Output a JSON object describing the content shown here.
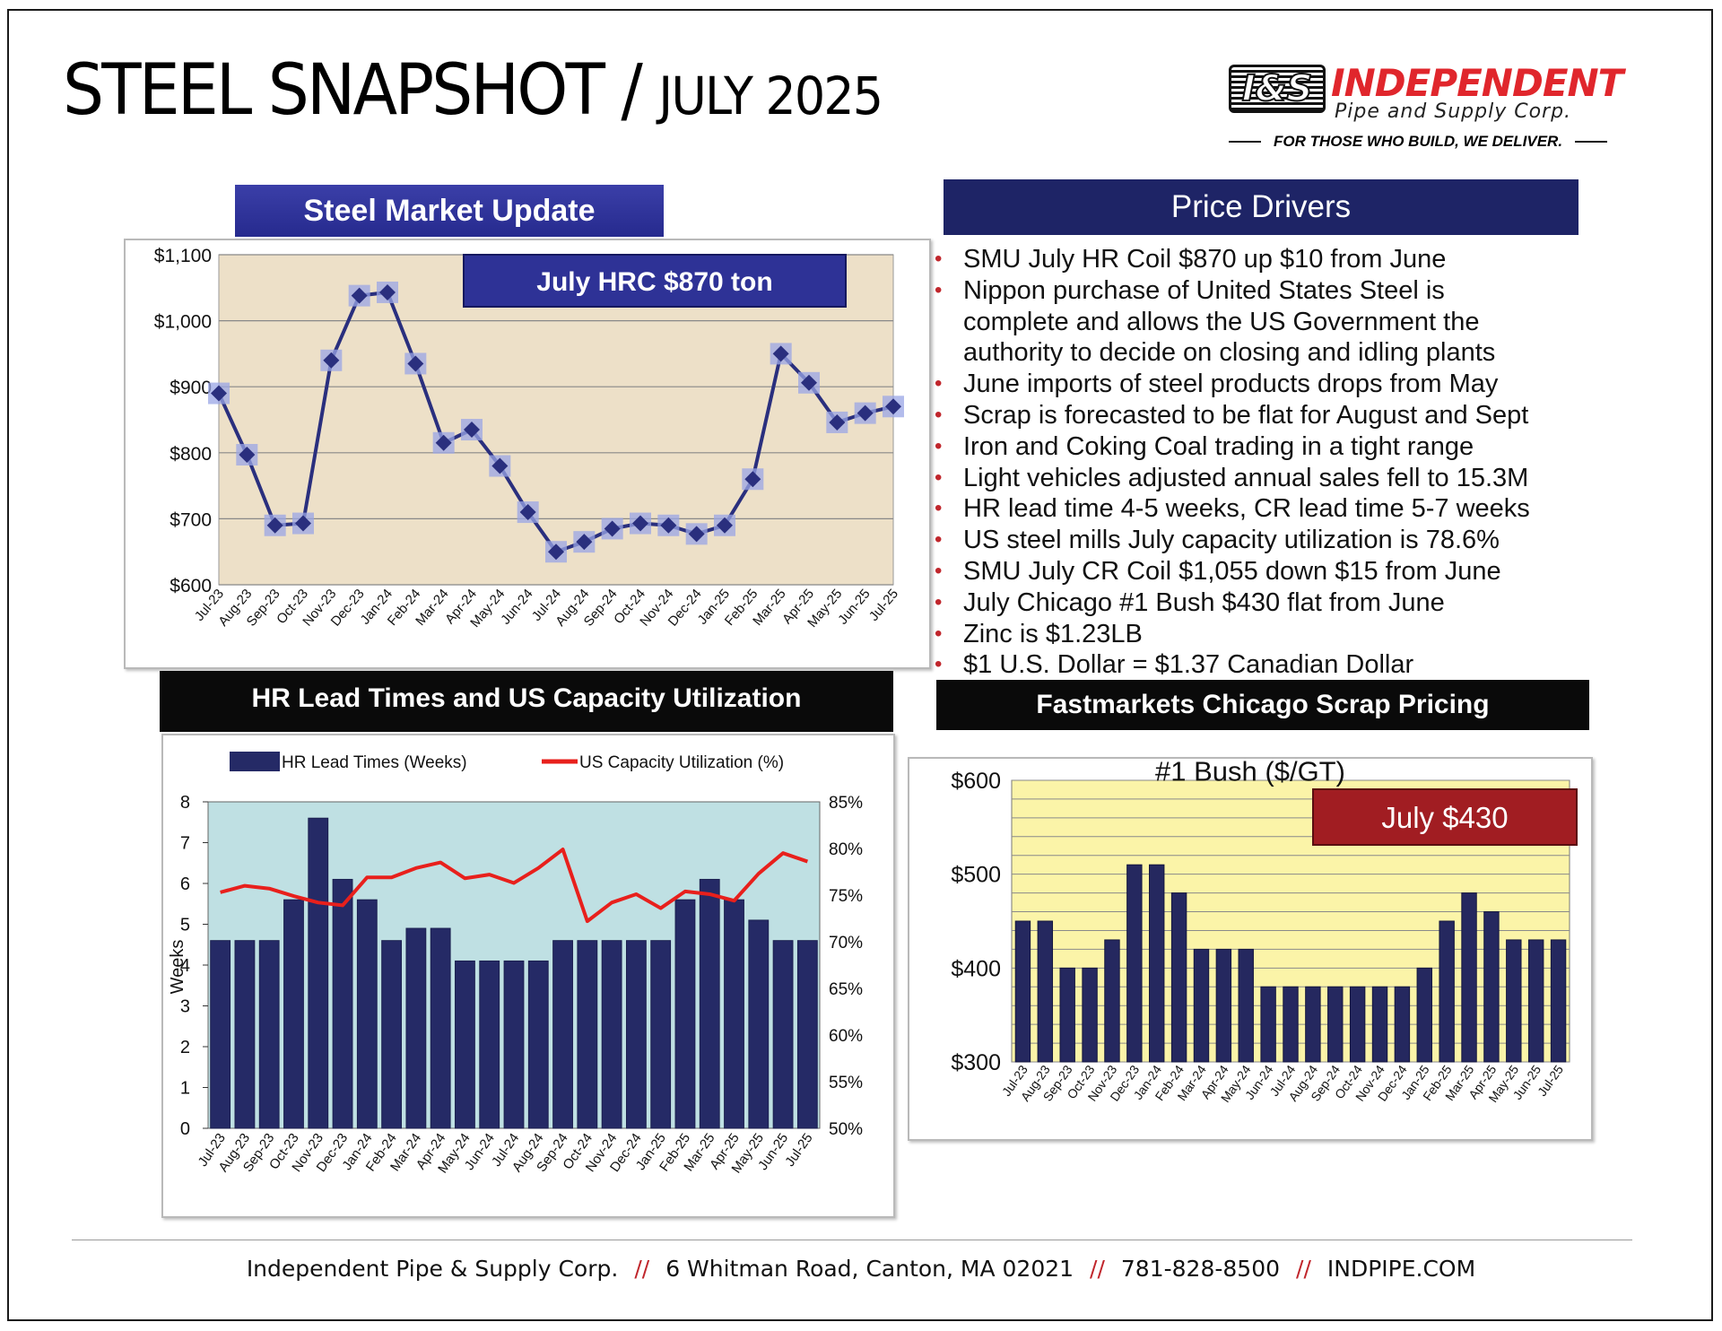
{
  "header": {
    "title": "STEEL SNAPSHOT /",
    "subtitle": "JULY 2025"
  },
  "logo": {
    "mark": "I&S",
    "name": "INDEPENDENT",
    "sub": "Pipe and Supply Corp.",
    "tagline": "FOR THOSE WHO BUILD, WE DELIVER."
  },
  "sections": {
    "smu_title": "Steel Market Update",
    "drivers_title": "Price Drivers",
    "lead_title": "HR Lead Times and US Capacity Utilization",
    "scrap_title": "Fastmarkets Chicago Scrap Pricing"
  },
  "price_drivers": [
    "SMU July HR Coil $870 up $10 from June",
    "Nippon purchase of United States Steel is",
    "complete and allows the US Government the",
    "authority to decide on closing and idling plants",
    "June imports of steel products drops from May",
    "Scrap is forecasted to be flat for August and Sept",
    "Iron and Coking Coal trading in a tight range",
    "Light vehicles adjusted annual sales fell to 15.3M",
    "HR lead time 4-5 weeks, CR lead time 5-7 weeks",
    "US steel mills July capacity utilization is 78.6%",
    "SMU July CR Coil $1,055 down $15 from June",
    "July Chicago #1 Bush $430 flat from June",
    "Zinc is $1.23LB",
    "$1 U.S. Dollar = $1.37 Canadian Dollar"
  ],
  "driver_bullet_flags": [
    true,
    true,
    false,
    false,
    true,
    true,
    true,
    true,
    true,
    true,
    true,
    true,
    true,
    true
  ],
  "footer": {
    "company": "Independent Pipe & Supply Corp.",
    "address": "6 Whitman Road, Canton, MA 02021",
    "phone": "781-828-8500",
    "web": "INDPIPE.COM",
    "separator": "//"
  },
  "colors": {
    "accent_red": "#c0262c",
    "navy": "#262a7a",
    "marker": "#2a2f7e",
    "hrc_plot_bg": "#ede0c8",
    "lead_plot_bg": "#bfe0e3",
    "scrap_plot_bg": "#fbf4a8",
    "capacity_line": "#e8201c"
  },
  "chart_data": [
    {
      "type": "line",
      "callout": "July HRC $870 ton",
      "categories": [
        "Jul-23",
        "Aug-23",
        "Sep-23",
        "Oct-23",
        "Nov-23",
        "Dec-23",
        "Jan-24",
        "Feb-24",
        "Mar-24",
        "Apr-24",
        "May-24",
        "Jun-24",
        "Jul-24",
        "Aug-24",
        "Sep-24",
        "Oct-24",
        "Nov-24",
        "Dec-24",
        "Jan-25",
        "Feb-25",
        "Mar-25",
        "Apr-25",
        "May-25",
        "Jun-25",
        "Jul-25"
      ],
      "values": [
        890,
        797,
        690,
        693,
        940,
        1038,
        1043,
        935,
        815,
        835,
        780,
        710,
        650,
        665,
        685,
        693,
        690,
        677,
        690,
        760,
        950,
        906,
        846,
        860,
        870
      ],
      "ylim": [
        600,
        1100
      ],
      "yticks": [
        600,
        700,
        800,
        900,
        1000,
        1100
      ],
      "ytick_labels": [
        "$600",
        "$700",
        "$800",
        "$900",
        "$1,000",
        "$1,100"
      ],
      "grid": true
    },
    {
      "type": "bar",
      "legend": [
        "HR Lead Times (Weeks)",
        "US Capacity Utilization (%)"
      ],
      "legend_position": "top",
      "categories": [
        "Jul-23",
        "Aug-23",
        "Sep-23",
        "Oct-23",
        "Nov-23",
        "Dec-23",
        "Jan-24",
        "Feb-24",
        "Mar-24",
        "Apr-24",
        "May-24",
        "Jun-24",
        "Jul-24",
        "Aug-24",
        "Sep-24",
        "Oct-24",
        "Nov-24",
        "Dec-24",
        "Jan-25",
        "Feb-25",
        "Mar-25",
        "Apr-25",
        "May-25",
        "Jun-25",
        "Jul-25"
      ],
      "series": [
        {
          "name": "HR Lead Times (Weeks)",
          "kind": "bar",
          "axis": "left",
          "values": [
            4.6,
            4.6,
            4.6,
            5.6,
            7.6,
            6.1,
            5.6,
            4.6,
            4.9,
            4.9,
            4.1,
            4.1,
            4.1,
            4.1,
            4.6,
            4.6,
            4.6,
            4.6,
            4.6,
            5.6,
            6.1,
            5.6,
            5.1,
            4.6,
            4.6
          ]
        },
        {
          "name": "US Capacity Utilization (%)",
          "kind": "line",
          "axis": "right",
          "values": [
            75.3,
            76.0,
            75.7,
            74.9,
            74.2,
            73.9,
            76.9,
            76.9,
            77.9,
            78.5,
            76.8,
            77.2,
            76.3,
            77.9,
            79.9,
            72.2,
            74.2,
            75.1,
            73.6,
            75.4,
            75.1,
            74.4,
            77.3,
            79.5,
            78.6
          ]
        }
      ],
      "ylabel": "Weeks",
      "ylim": [
        0,
        8
      ],
      "yticks": [
        0,
        1,
        2,
        3,
        4,
        5,
        6,
        7,
        8
      ],
      "y2lim": [
        50,
        85
      ],
      "y2ticks": [
        50,
        55,
        60,
        65,
        70,
        75,
        80,
        85
      ],
      "y2tick_labels": [
        "50%",
        "55%",
        "60%",
        "65%",
        "70%",
        "75%",
        "80%",
        "85%"
      ]
    },
    {
      "type": "bar",
      "title": "#1 Bush ($/GT)",
      "callout": "July $430",
      "categories": [
        "Jul-23",
        "Aug-23",
        "Sep-23",
        "Oct-23",
        "Nov-23",
        "Dec-23",
        "Jan-24",
        "Feb-24",
        "Mar-24",
        "Apr-24",
        "May-24",
        "Jun-24",
        "Jul-24",
        "Aug-24",
        "Sep-24",
        "Oct-24",
        "Nov-24",
        "Dec-24",
        "Jan-25",
        "Feb-25",
        "Mar-25",
        "Apr-25",
        "May-25",
        "Jun-25",
        "Jul-25"
      ],
      "values": [
        450,
        450,
        400,
        400,
        430,
        510,
        510,
        480,
        420,
        420,
        420,
        380,
        380,
        380,
        380,
        380,
        380,
        380,
        400,
        450,
        480,
        460,
        430,
        430,
        430
      ],
      "ylim": [
        300,
        600
      ],
      "yticks": [
        300,
        400,
        500,
        600
      ],
      "ytick_labels": [
        "$300",
        "$400",
        "$500",
        "$600"
      ],
      "grid": true
    }
  ]
}
